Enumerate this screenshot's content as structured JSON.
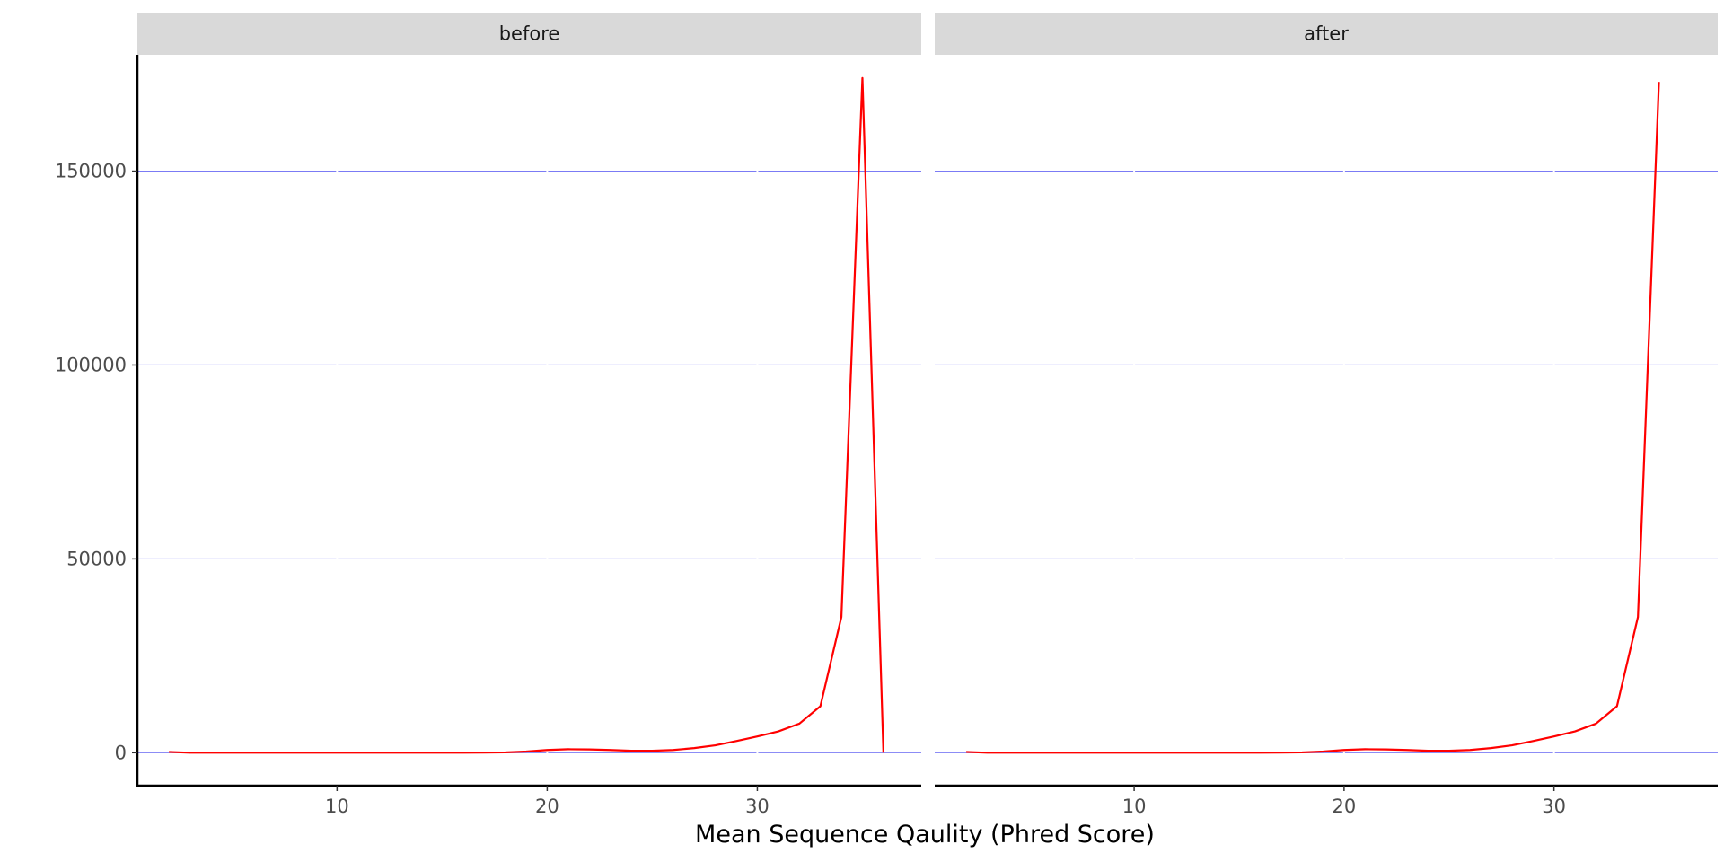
{
  "chart_data": {
    "type": "line",
    "xlabel": "Mean Sequence Qaulity (Phred Score)",
    "ylabel": "",
    "xlim": [
      0.5,
      37.8
    ],
    "ylim": [
      -8500,
      180000
    ],
    "x_ticks": [
      10,
      20,
      30
    ],
    "y_ticks": [
      0,
      50000,
      100000,
      150000
    ],
    "y_tick_labels": [
      "0",
      "50000",
      "100000",
      "150000"
    ],
    "grid": {
      "major_y": true,
      "major_x": false,
      "color": "#7b7bf5"
    },
    "line_color": "#ff0000",
    "strip_color": "#d9d9d9",
    "panels": [
      {
        "label": "before",
        "series": [
          {
            "x": [
              2,
              3,
              4,
              5,
              6,
              7,
              8,
              9,
              10,
              11,
              12,
              13,
              14,
              15,
              16,
              17,
              18,
              19,
              20,
              21,
              22,
              23,
              24,
              25,
              26,
              27,
              28,
              29,
              30,
              31,
              32,
              33,
              34,
              35,
              36
            ],
            "y": [
              200,
              0,
              0,
              0,
              0,
              0,
              0,
              0,
              0,
              0,
              0,
              0,
              0,
              0,
              0,
              20,
              80,
              300,
              700,
              900,
              850,
              700,
              500,
              500,
              700,
              1200,
              1900,
              3000,
              4200,
              5500,
              7500,
              12000,
              35000,
              174000,
              0
            ]
          }
        ]
      },
      {
        "label": "after",
        "series": [
          {
            "x": [
              2,
              3,
              4,
              5,
              6,
              7,
              8,
              9,
              10,
              11,
              12,
              13,
              14,
              15,
              16,
              17,
              18,
              19,
              20,
              21,
              22,
              23,
              24,
              25,
              26,
              27,
              28,
              29,
              30,
              31,
              32,
              33,
              34,
              35
            ],
            "y": [
              200,
              0,
              0,
              0,
              0,
              0,
              0,
              0,
              0,
              0,
              0,
              0,
              0,
              0,
              0,
              20,
              80,
              300,
              700,
              900,
              850,
              700,
              500,
              500,
              700,
              1200,
              1900,
              3000,
              4200,
              5500,
              7500,
              12000,
              35000,
              173000
            ]
          }
        ]
      }
    ]
  }
}
